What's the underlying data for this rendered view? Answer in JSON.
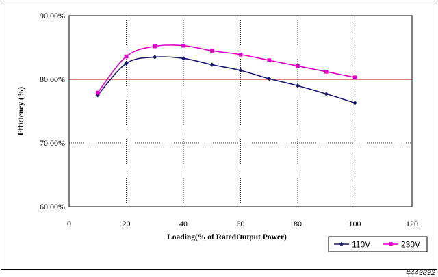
{
  "chart_data": {
    "type": "line",
    "xlabel": "Loading(% of RatedOutput Power)",
    "ylabel": "Efficiency (%)",
    "xlim": [
      0,
      120
    ],
    "ylim": [
      60,
      90
    ],
    "x_ticks": [
      "0",
      "20",
      "40",
      "60",
      "80",
      "100",
      "120"
    ],
    "y_ticks": [
      "60.00%",
      "70.00%",
      "80.00%",
      "90.00%"
    ],
    "grid": "dotted",
    "reference_line": {
      "y": 80,
      "color": "#cc3333"
    },
    "legend_position": "bottom-right",
    "x": [
      10,
      20,
      30,
      40,
      50,
      60,
      70,
      80,
      90,
      100
    ],
    "series": [
      {
        "name": "110V",
        "color": "#1a1a6e",
        "marker": "diamond",
        "values": [
          77.5,
          82.5,
          83.5,
          83.3,
          82.3,
          81.4,
          80.1,
          79.0,
          77.7,
          76.3
        ]
      },
      {
        "name": "230V",
        "color": "#e000c8",
        "marker": "square",
        "values": [
          77.9,
          83.6,
          85.2,
          85.3,
          84.5,
          83.9,
          83.0,
          82.1,
          81.2,
          80.3
        ]
      }
    ]
  },
  "watermark": "#443892"
}
